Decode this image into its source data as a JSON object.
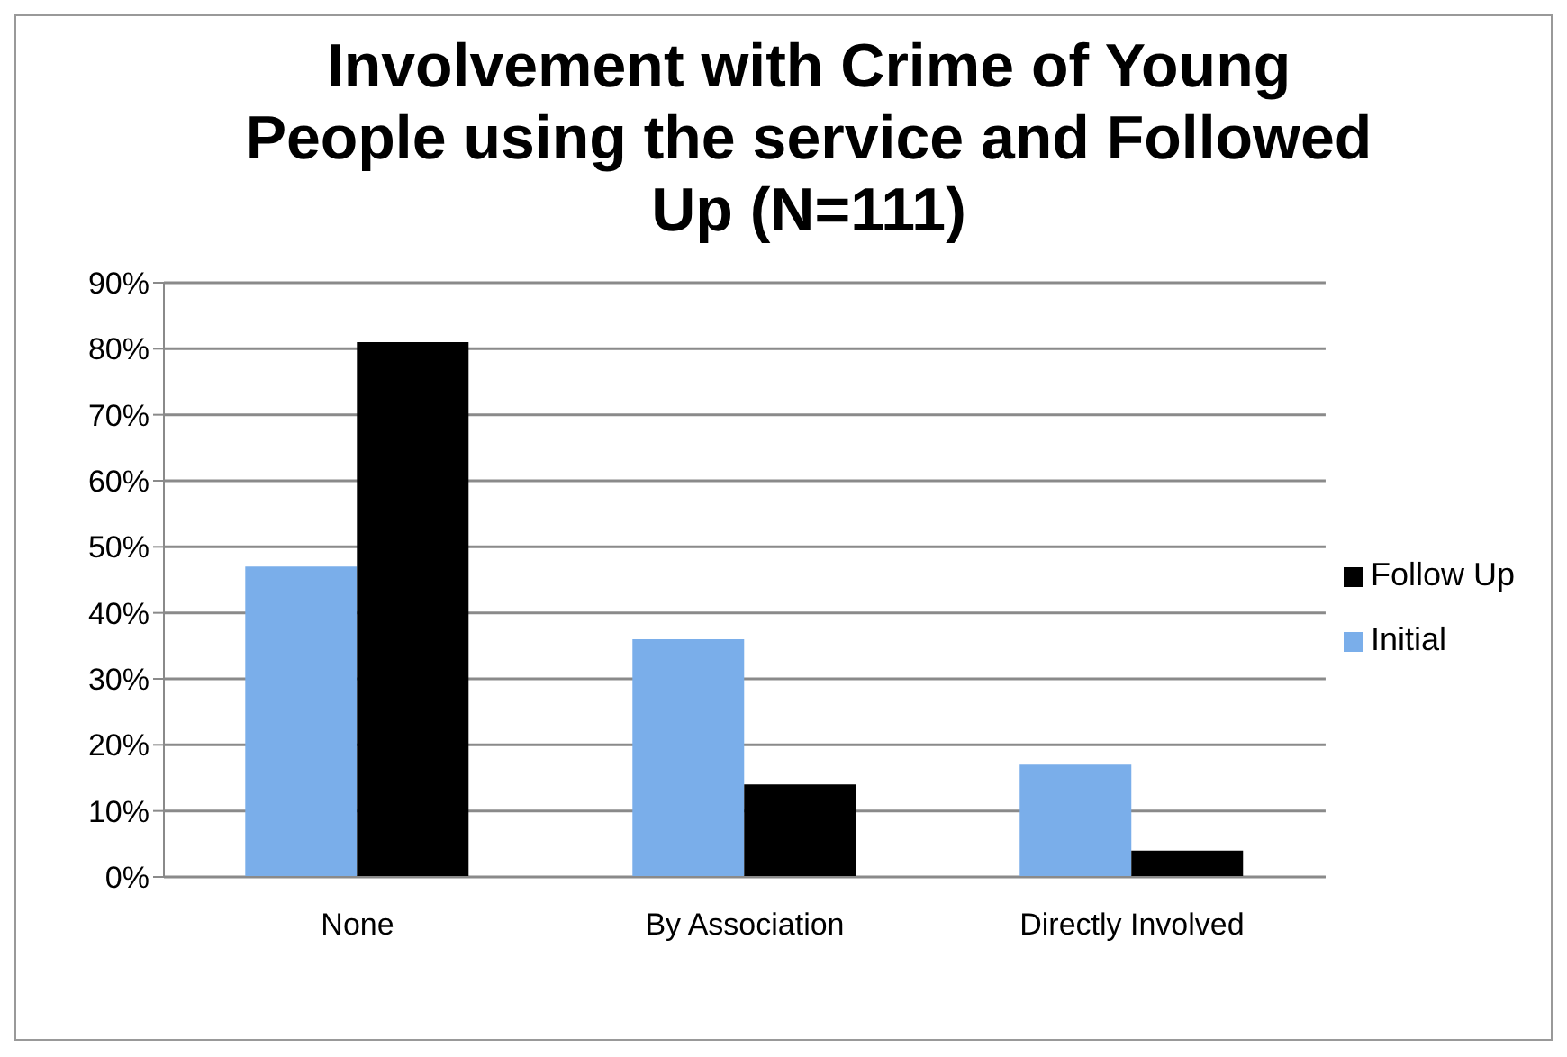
{
  "chart_data": {
    "type": "bar",
    "title": "Involvement with Crime of Young People using the service and Followed Up (N=111)",
    "categories": [
      "None",
      "By Association",
      "Directly Involved"
    ],
    "series": [
      {
        "name": "Initial",
        "color": "#7aaeea",
        "values": [
          47,
          36,
          17
        ]
      },
      {
        "name": "Follow Up",
        "color": "#000000",
        "values": [
          81,
          14,
          4
        ]
      }
    ],
    "ylim": [
      0,
      90
    ],
    "yticks": [
      {
        "value": 0,
        "label": "0%"
      },
      {
        "value": 10,
        "label": "10%"
      },
      {
        "value": 20,
        "label": "20%"
      },
      {
        "value": 30,
        "label": "30%"
      },
      {
        "value": 40,
        "label": "40%"
      },
      {
        "value": 50,
        "label": "50%"
      },
      {
        "value": 60,
        "label": "60%"
      },
      {
        "value": 70,
        "label": "70%"
      },
      {
        "value": 80,
        "label": "80%"
      },
      {
        "value": 90,
        "label": "90%"
      }
    ],
    "grid": "y",
    "legend": "right"
  }
}
